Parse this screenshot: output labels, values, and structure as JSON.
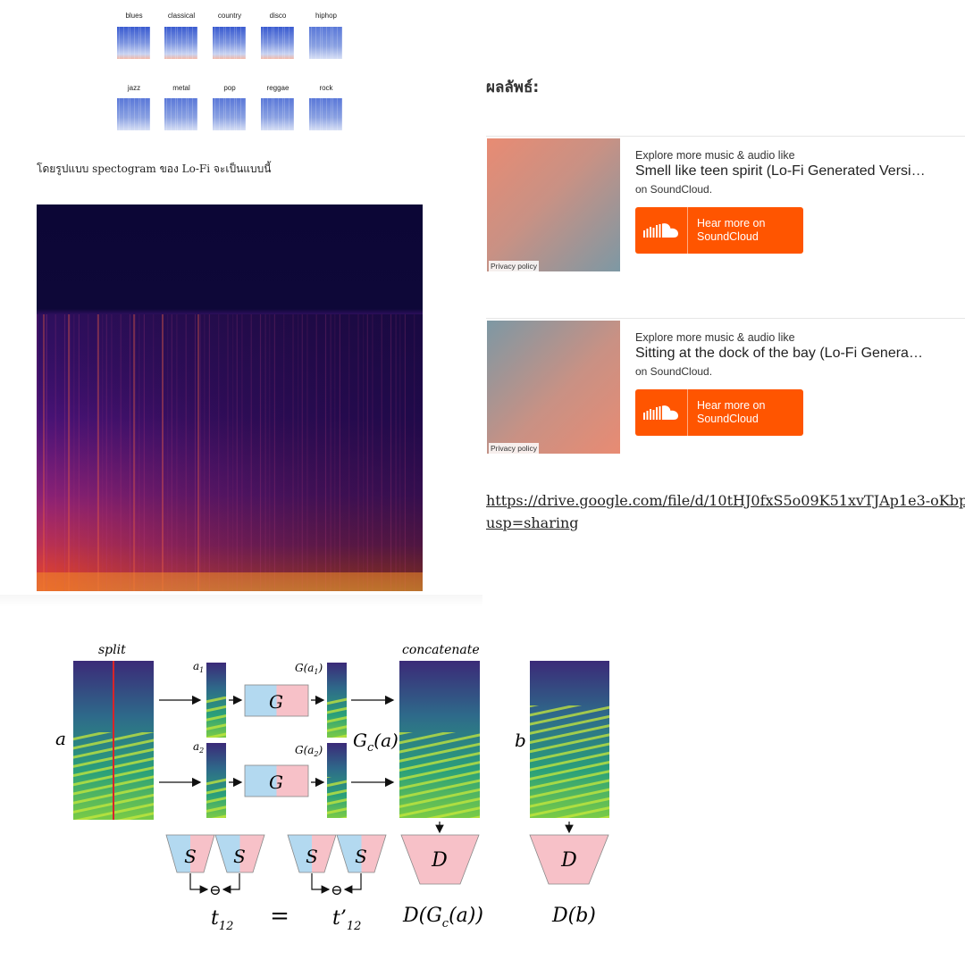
{
  "genres": [
    "blues",
    "classical",
    "country",
    "disco",
    "hiphop",
    "jazz",
    "metal",
    "pop",
    "reggae",
    "rock"
  ],
  "caption": "โดยรูปแบบ spectogram ของ Lo-Fi จะเป็นแบบนี้",
  "result_heading": "ผลลัพธ์:",
  "soundcloud": [
    {
      "explore": "Explore more music & audio like",
      "title": "Smell like teen spirit (Lo-Fi Generated Versi…",
      "on": "on SoundCloud.",
      "button": "Hear more on SoundCloud",
      "privacy": "Privacy policy"
    },
    {
      "explore": "Explore more music & audio like",
      "title": "Sitting at the dock of the bay (Lo-Fi Genera…",
      "on": "on SoundCloud.",
      "button": "Hear more on SoundCloud",
      "privacy": "Privacy policy"
    }
  ],
  "drive_link": {
    "line1": "https://drive.google.com/file/d/10tHJ0fxS5o09K51xvTJAp1e3-oKbp",
    "line2": "usp=sharing"
  },
  "diagram": {
    "split": "split",
    "concatenate": "concatenate",
    "a": "a",
    "b": "b",
    "a1": "a",
    "a1_sub": "1",
    "a2": "a",
    "a2_sub": "2",
    "g_label": "G",
    "ga1": "G(a",
    "ga1_sub": "1",
    "ga2": "G(a",
    "ga2_sub": "2",
    "gc": "G",
    "gc_sub": "c",
    "gc_rest": "(a)",
    "s_label": "S",
    "d_label": "D",
    "minus": "⊖",
    "t12": "t",
    "t12_sub": "12",
    "equals": "=",
    "t12p": "t’",
    "t12p_sub": "12",
    "dgc": "D(G",
    "dgc_sub": "c",
    "dgc_rest": "(a))",
    "db": "D(b)"
  },
  "colors": {
    "soundcloud_orange": "#ff5500",
    "g_blue": "#b3d9f0",
    "g_pink": "#f7c1c8"
  }
}
